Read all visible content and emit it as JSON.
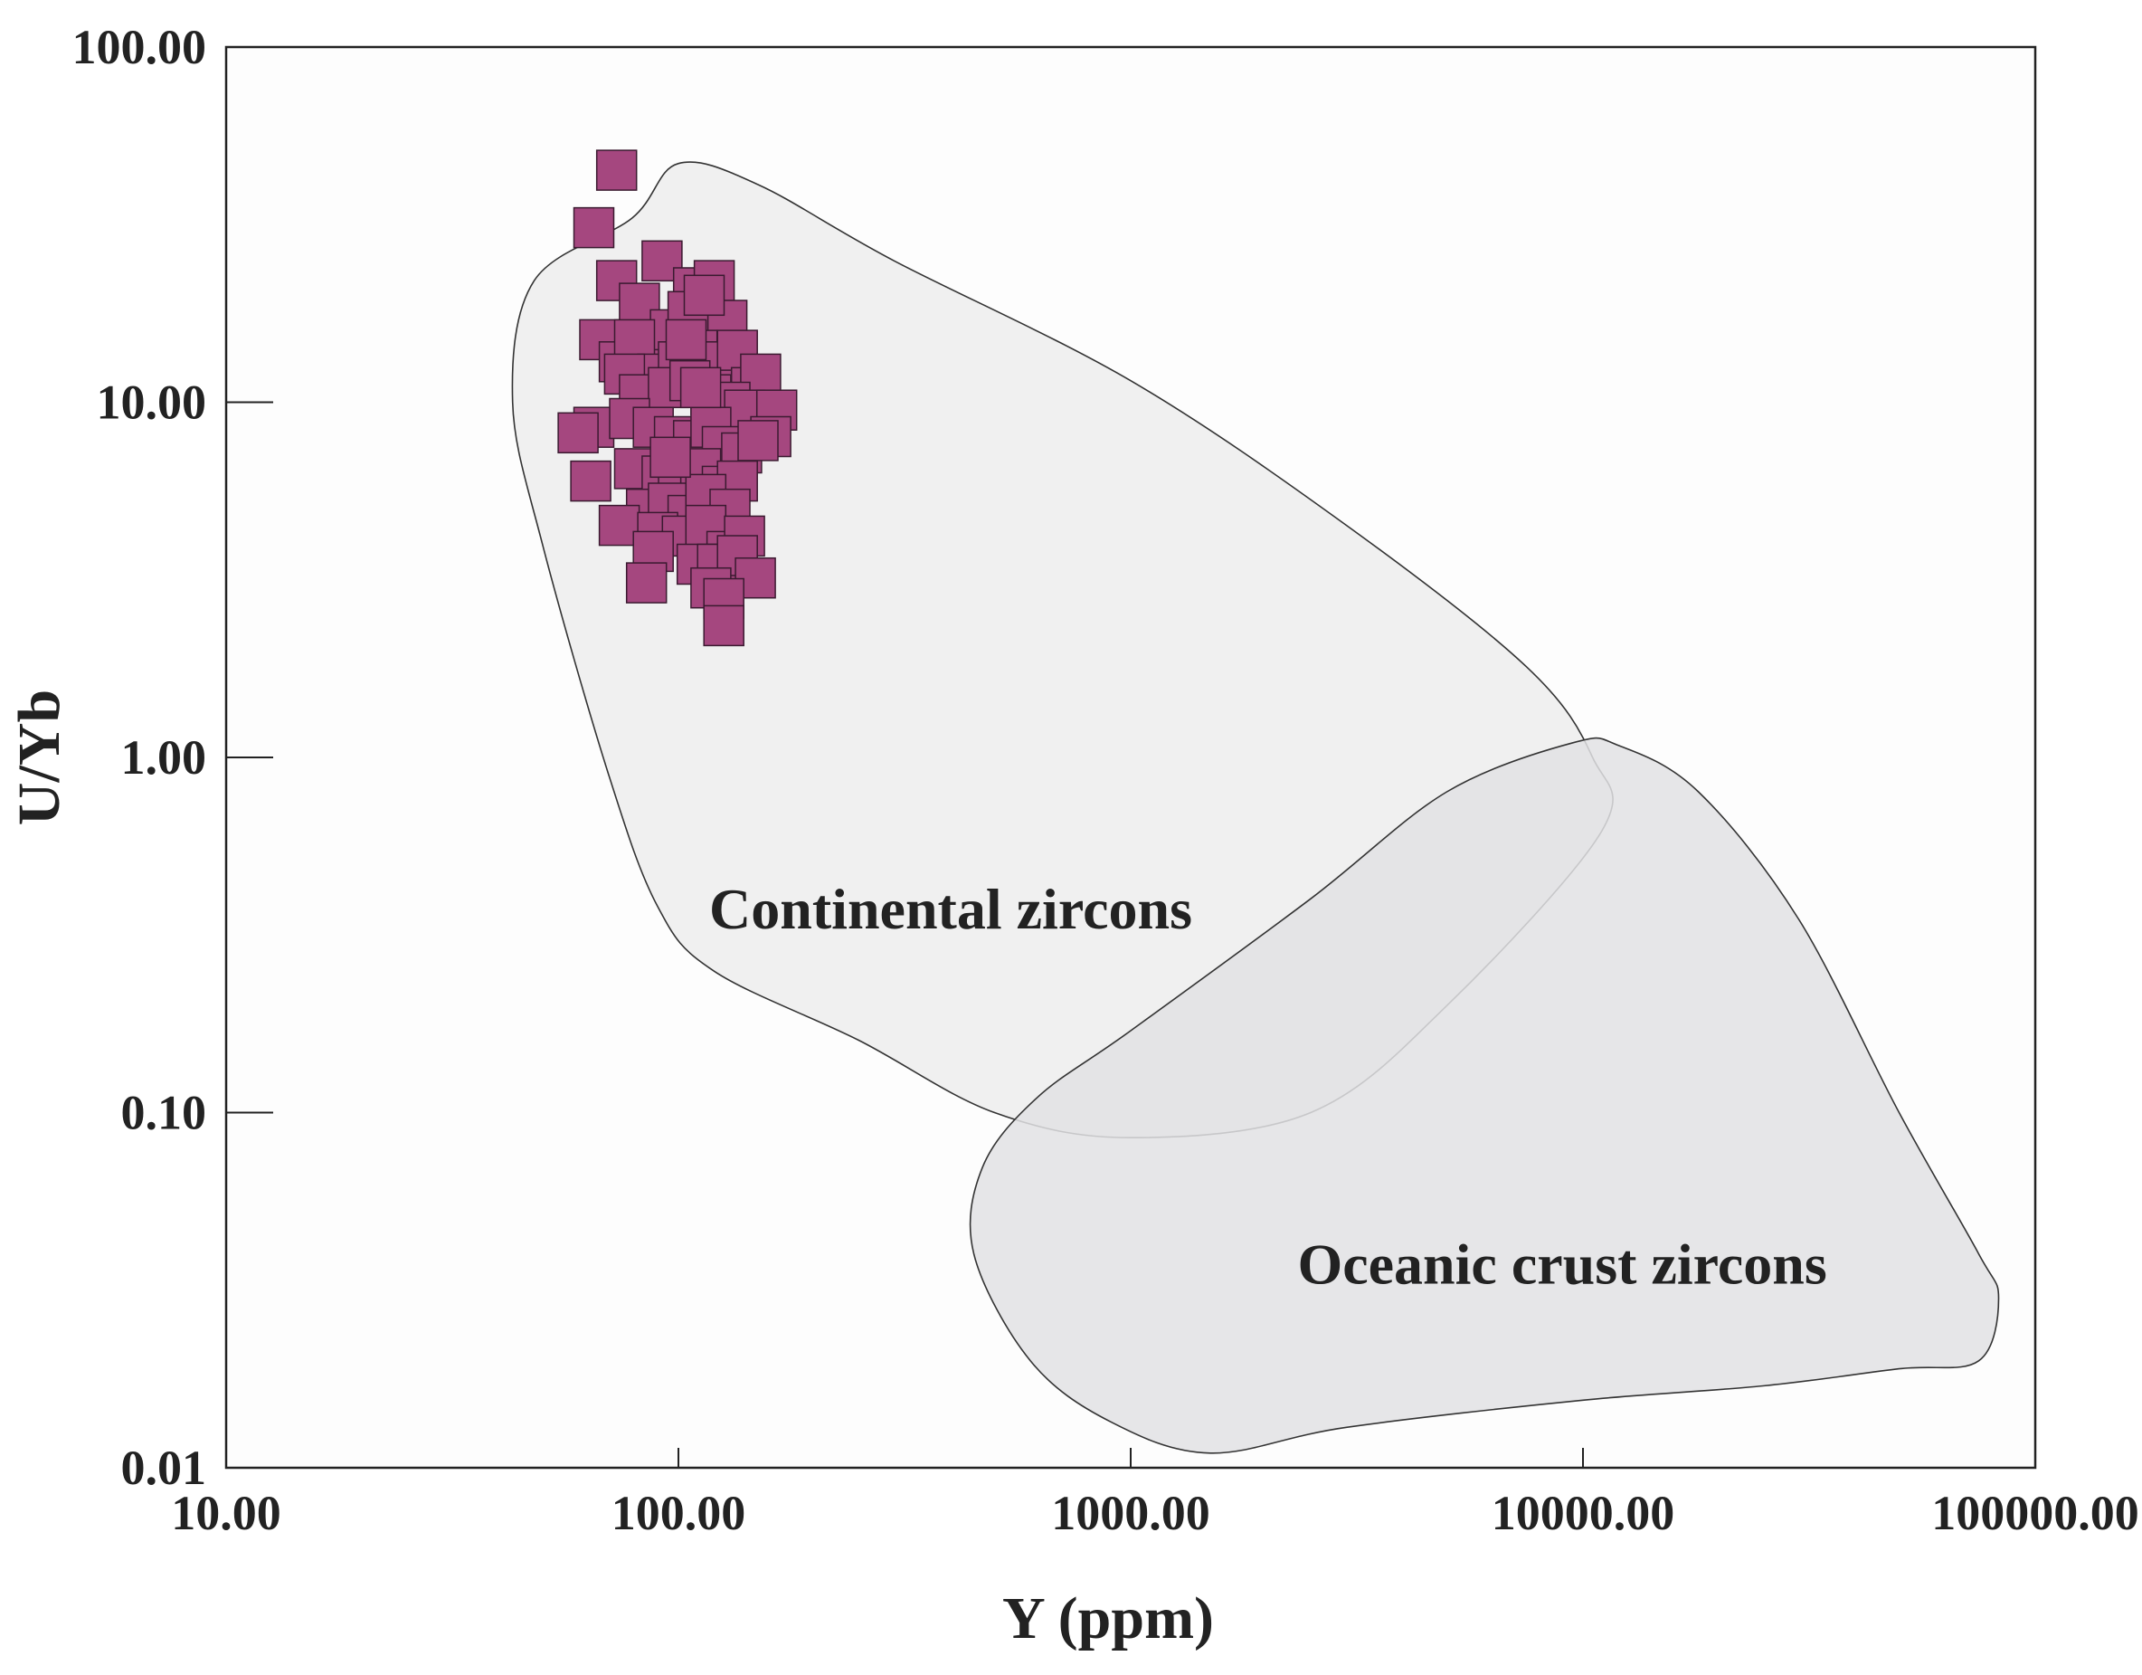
{
  "chart_data": {
    "type": "scatter",
    "title": "",
    "xlabel": "Y (ppm)",
    "ylabel": "U/Yb",
    "xscale": "log",
    "yscale": "log",
    "xlim": [
      10,
      100000
    ],
    "ylim": [
      0.01,
      100
    ],
    "x_ticks": [
      10,
      100,
      1000,
      10000,
      100000
    ],
    "x_tick_labels": [
      "10.00",
      "100.00",
      "1000.00",
      "10000.00",
      "100000.00"
    ],
    "y_ticks": [
      0.01,
      0.1,
      1,
      10,
      100
    ],
    "y_tick_labels": [
      "0.01",
      "0.10",
      "1.00",
      "10.00",
      "100.00"
    ],
    "grid": false,
    "colors": {
      "marker_fill": "#a5477f",
      "marker_edge": "#3a1a30",
      "continental_fill": "#f0f0f0",
      "oceanic_fill": "#e2e2e4",
      "outline": "#333333",
      "plot_background": "#fdfdfd"
    },
    "fields": [
      {
        "name": "Continental zircons",
        "boundary": [
          [
            79,
            33
          ],
          [
            100,
            47
          ],
          [
            150,
            41
          ],
          [
            300,
            25
          ],
          [
            1000,
            11.5
          ],
          [
            3000,
            4.5
          ],
          [
            7500,
            1.8
          ],
          [
            10500,
            1.0
          ],
          [
            11000,
            0.62
          ],
          [
            5000,
            0.2
          ],
          [
            2500,
            0.1
          ],
          [
            1000,
            0.085
          ],
          [
            500,
            0.1
          ],
          [
            250,
            0.16
          ],
          [
            120,
            0.25
          ],
          [
            90,
            0.38
          ],
          [
            70,
            0.9
          ],
          [
            50,
            4
          ],
          [
            43,
            10
          ],
          [
            48,
            22
          ]
        ]
      },
      {
        "name": "Oceanic crust zircons",
        "boundary": [
          [
            9500,
            1.1
          ],
          [
            12000,
            1.08
          ],
          [
            18000,
            0.8
          ],
          [
            30000,
            0.35
          ],
          [
            50000,
            0.1
          ],
          [
            75000,
            0.04
          ],
          [
            83000,
            0.03
          ],
          [
            75000,
            0.02
          ],
          [
            50000,
            0.019
          ],
          [
            25000,
            0.017
          ],
          [
            10000,
            0.0155
          ],
          [
            3000,
            0.013
          ],
          [
            1500,
            0.011
          ],
          [
            900,
            0.0135
          ],
          [
            600,
            0.02
          ],
          [
            450,
            0.04
          ],
          [
            470,
            0.07
          ],
          [
            620,
            0.11
          ],
          [
            1000,
            0.17
          ],
          [
            2500,
            0.4
          ],
          [
            5000,
            0.8
          ]
        ]
      }
    ],
    "series": [
      {
        "name": "samples",
        "points": [
          [
            73,
            45
          ],
          [
            65,
            31
          ],
          [
            73,
            22
          ],
          [
            92,
            25
          ],
          [
            82,
            19
          ],
          [
            108,
            21
          ],
          [
            120,
            22
          ],
          [
            128,
            17
          ],
          [
            86,
            14
          ],
          [
            96,
            16
          ],
          [
            105,
            18
          ],
          [
            114,
            20
          ],
          [
            67,
            15
          ],
          [
            74,
            13
          ],
          [
            80,
            15
          ],
          [
            90,
            12
          ],
          [
            100,
            13
          ],
          [
            110,
            14
          ],
          [
            122,
            13
          ],
          [
            135,
            14
          ],
          [
            145,
            11
          ],
          [
            152,
            12
          ],
          [
            76,
            12
          ],
          [
            82,
            10.5
          ],
          [
            95,
            11
          ],
          [
            106,
            11.5
          ],
          [
            118,
            10.5
          ],
          [
            130,
            10
          ],
          [
            140,
            9.5
          ],
          [
            165,
            9.5
          ],
          [
            160,
            8
          ],
          [
            65,
            8.5
          ],
          [
            60,
            8.2
          ],
          [
            78,
            9
          ],
          [
            88,
            8.5
          ],
          [
            98,
            8
          ],
          [
            108,
            7.8
          ],
          [
            118,
            8.5
          ],
          [
            125,
            7.5
          ],
          [
            138,
            7.2
          ],
          [
            150,
            7.8
          ],
          [
            64,
            6
          ],
          [
            80,
            6.5
          ],
          [
            92,
            6.2
          ],
          [
            100,
            6
          ],
          [
            112,
            6.5
          ],
          [
            125,
            5.8
          ],
          [
            135,
            6
          ],
          [
            85,
            5
          ],
          [
            95,
            5.2
          ],
          [
            105,
            4.8
          ],
          [
            115,
            5.5
          ],
          [
            130,
            5
          ],
          [
            74,
            4.5
          ],
          [
            90,
            4.3
          ],
          [
            102,
            4.2
          ],
          [
            115,
            4.5
          ],
          [
            128,
            3.8
          ],
          [
            140,
            4.2
          ],
          [
            88,
            3.8
          ],
          [
            110,
            3.5
          ],
          [
            122,
            3.5
          ],
          [
            135,
            3.7
          ],
          [
            85,
            3.1
          ],
          [
            118,
            3.0
          ],
          [
            148,
            3.2
          ],
          [
            126,
            2.8
          ],
          [
            126,
            2.35
          ],
          [
            104,
            15
          ],
          [
            112,
            11
          ],
          [
            96,
            7
          ]
        ]
      }
    ],
    "annotations": [
      {
        "text": "Continental zircons",
        "x": 400,
        "y": 0.33
      },
      {
        "text": "Oceanic crust zircons",
        "x": 9000,
        "y": 0.033
      }
    ]
  }
}
